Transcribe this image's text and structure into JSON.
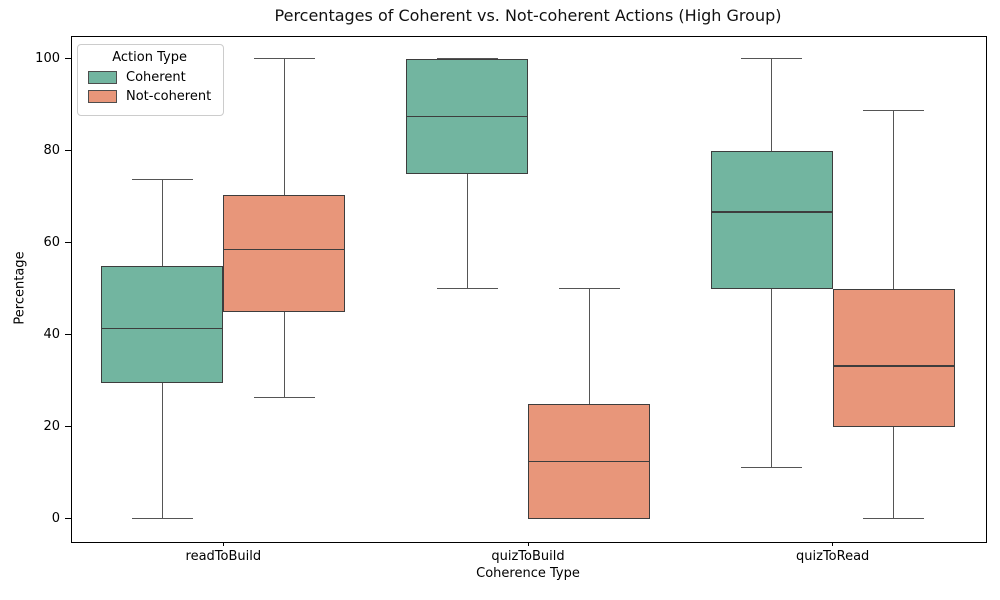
{
  "chart_data": {
    "type": "boxplot",
    "title": "Percentages of Coherent vs. Not-coherent Actions (High Group)",
    "xlabel": "Coherence Type",
    "ylabel": "Percentage",
    "categories": [
      "readToBuild",
      "quizToBuild",
      "quizToRead"
    ],
    "yticks": [
      0,
      20,
      40,
      60,
      80,
      100
    ],
    "ylim": [
      -4.8,
      105
    ],
    "grid": false,
    "legend": {
      "title": "Action Type",
      "position": "upper left"
    },
    "colors": {
      "box_edge": "#3d3d3d",
      "whisker": "#555555",
      "spine": "#000000"
    },
    "series": [
      {
        "name": "Coherent",
        "color": "#72b5a0",
        "boxes": [
          {
            "category": "readToBuild",
            "whislo": 0,
            "q1": 29.6,
            "med": 41.4,
            "q3": 55,
            "whishi": 73.7
          },
          {
            "category": "quizToBuild",
            "whislo": 50,
            "q1": 75,
            "med": 87.5,
            "q3": 100,
            "whishi": 100
          },
          {
            "category": "quizToRead",
            "whislo": 11.1,
            "q1": 50,
            "med": 66.7,
            "q3": 80,
            "whishi": 100
          }
        ]
      },
      {
        "name": "Not-coherent",
        "color": "#e8967a",
        "boxes": [
          {
            "category": "readToBuild",
            "whislo": 26.3,
            "q1": 45,
            "med": 58.6,
            "q3": 70.4,
            "whishi": 100
          },
          {
            "category": "quizToBuild",
            "whislo": 0,
            "q1": 0,
            "med": 12.5,
            "q3": 25,
            "whishi": 50
          },
          {
            "category": "quizToRead",
            "whislo": 0,
            "q1": 20,
            "med": 33.3,
            "q3": 50,
            "whishi": 88.9
          }
        ]
      }
    ]
  }
}
